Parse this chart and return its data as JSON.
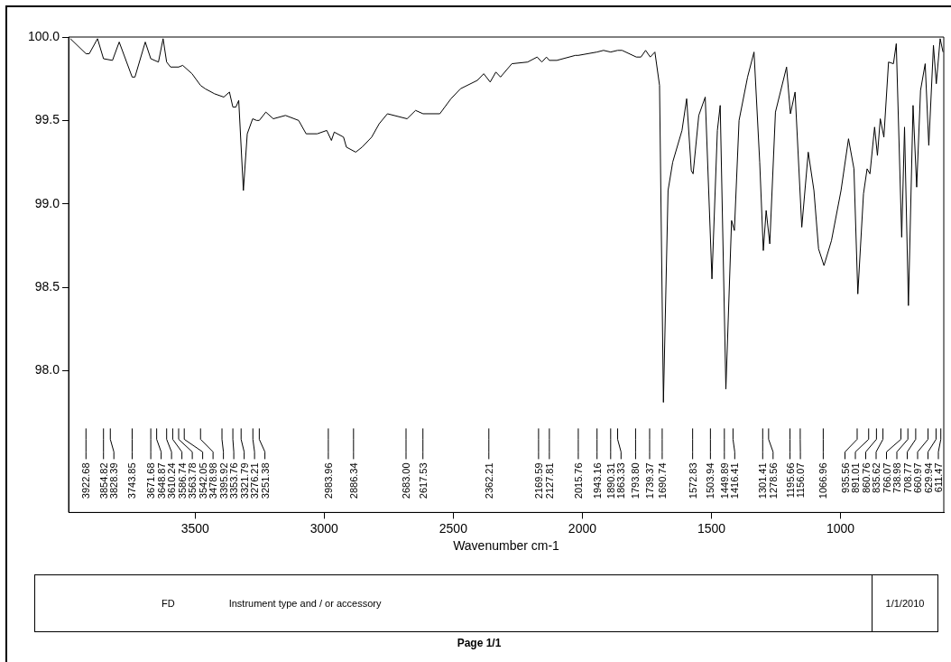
{
  "chart_data": {
    "type": "line",
    "xlabel": "Wavenumber cm-1",
    "xlim": [
      3990,
      600
    ],
    "xticks": [
      3500,
      3000,
      2500,
      2000,
      1500,
      1000
    ],
    "ylim": [
      97.15,
      100.0
    ],
    "yticks": [
      {
        "value": 98,
        "label": "98.0"
      },
      {
        "value": 98.5,
        "label": "98.5"
      },
      {
        "value": 99,
        "label": "99.0"
      },
      {
        "value": 99.5,
        "label": "99.5"
      },
      {
        "value": 100,
        "label": "100.0"
      }
    ],
    "marker": "none",
    "line_style": "solid",
    "legend": false,
    "series": [
      {
        "color": "#000000",
        "x": [
          3983,
          3922.68,
          3910,
          3878,
          3854.82,
          3820,
          3794,
          3743.85,
          3733,
          3693,
          3671.68,
          3642,
          3624,
          3610.24,
          3595,
          3563.78,
          3548,
          3512,
          3478.98,
          3461,
          3425,
          3389,
          3367,
          3353.76,
          3342,
          3331,
          3313,
          3298,
          3277,
          3262,
          3251.38,
          3226,
          3197,
          3150,
          3099,
          3070,
          3027,
          2990,
          2972,
          2961,
          2925,
          2914,
          2878,
          2853,
          2816,
          2787,
          2755,
          2679,
          2646,
          2617,
          2552,
          2509,
          2472,
          2407,
          2382,
          2357,
          2335,
          2317,
          2273,
          2212,
          2175,
          2157,
          2139,
          2127.81,
          2099,
          2027,
          2015.76,
          1943.16,
          1918,
          1890.31,
          1863.33,
          1846,
          1791,
          1773,
          1755,
          1737,
          1719,
          1701,
          1686,
          1668,
          1650,
          1614,
          1596,
          1578,
          1571,
          1549,
          1524,
          1498,
          1477,
          1466,
          1444,
          1422,
          1411,
          1393,
          1360,
          1335,
          1313,
          1299,
          1288,
          1274,
          1252,
          1209,
          1194,
          1176,
          1150,
          1125,
          1103,
          1085,
          1064,
          1035,
          998,
          969,
          948,
          933,
          911,
          897,
          886,
          868,
          857,
          846,
          832,
          814,
          795,
          784,
          763,
          752,
          737,
          719,
          705,
          690,
          672,
          658,
          640,
          629,
          614,
          603
        ],
        "values": [
          99.99,
          99.9,
          99.9,
          99.99,
          99.87,
          99.86,
          99.97,
          99.76,
          99.76,
          99.97,
          99.87,
          99.85,
          99.99,
          99.85,
          99.82,
          99.82,
          99.83,
          99.78,
          99.71,
          99.69,
          99.66,
          99.64,
          99.67,
          99.58,
          99.58,
          99.62,
          99.08,
          99.42,
          99.51,
          99.5,
          99.5,
          99.55,
          99.51,
          99.53,
          99.5,
          99.42,
          99.42,
          99.44,
          99.38,
          99.43,
          99.4,
          99.34,
          99.31,
          99.34,
          99.4,
          99.48,
          99.54,
          99.51,
          99.56,
          99.54,
          99.54,
          99.63,
          99.69,
          99.74,
          99.78,
          99.73,
          99.79,
          99.76,
          99.84,
          99.85,
          99.88,
          99.85,
          99.88,
          99.86,
          99.86,
          99.89,
          99.89,
          99.91,
          99.92,
          99.91,
          99.92,
          99.92,
          99.88,
          99.88,
          99.92,
          99.88,
          99.91,
          99.71,
          97.81,
          99.08,
          99.25,
          99.44,
          99.63,
          99.2,
          99.18,
          99.53,
          99.64,
          98.55,
          99.44,
          99.59,
          97.89,
          98.9,
          98.84,
          99.5,
          99.76,
          99.91,
          99.25,
          98.72,
          98.96,
          98.76,
          99.55,
          99.82,
          99.54,
          99.67,
          98.86,
          99.31,
          99.08,
          98.73,
          98.63,
          98.78,
          99.08,
          99.39,
          99.21,
          98.46,
          99.06,
          99.21,
          99.18,
          99.46,
          99.29,
          99.51,
          99.4,
          99.85,
          99.84,
          99.96,
          98.8,
          99.46,
          98.39,
          99.59,
          99.1,
          99.68,
          99.84,
          99.35,
          99.95,
          99.72,
          99.99,
          99.91
        ]
      }
    ],
    "annotations": [
      {
        "text": "3922.68",
        "x": 3922.68
      },
      {
        "text": "3854.82",
        "x": 3854.82
      },
      {
        "text": "3828.39",
        "x": 3828.39
      },
      {
        "text": "3743.85",
        "x": 3743.85
      },
      {
        "text": "3671.68",
        "x": 3671.68
      },
      {
        "text": "3648.87",
        "x": 3648.87
      },
      {
        "text": "3610.24",
        "x": 3610.24
      },
      {
        "text": "3586.74",
        "x": 3586.74
      },
      {
        "text": "3563.78",
        "x": 3563.78
      },
      {
        "text": "3542.05",
        "x": 3542.05
      },
      {
        "text": "3478.98",
        "x": 3478.98
      },
      {
        "text": "3395.92",
        "x": 3395.92
      },
      {
        "text": "3353.76",
        "x": 3353.76
      },
      {
        "text": "3321.79",
        "x": 3321.79
      },
      {
        "text": "3276.21",
        "x": 3276.21
      },
      {
        "text": "3251.38",
        "x": 3251.38
      },
      {
        "text": "2983.96",
        "x": 2983.96
      },
      {
        "text": "2886.34",
        "x": 2886.34
      },
      {
        "text": "2683.00",
        "x": 2683.0
      },
      {
        "text": "2617.53",
        "x": 2617.53
      },
      {
        "text": "2362.21",
        "x": 2362.21
      },
      {
        "text": "2169.59",
        "x": 2169.59
      },
      {
        "text": "2127.81",
        "x": 2127.81
      },
      {
        "text": "2015.76",
        "x": 2015.76
      },
      {
        "text": "1943.16",
        "x": 1943.16
      },
      {
        "text": "1890.31",
        "x": 1890.31
      },
      {
        "text": "1863.33",
        "x": 1863.33
      },
      {
        "text": "1793.80",
        "x": 1793.8
      },
      {
        "text": "1739.37",
        "x": 1739.37
      },
      {
        "text": "1690.74",
        "x": 1690.74
      },
      {
        "text": "1572.83",
        "x": 1572.83
      },
      {
        "text": "1503.94",
        "x": 1503.94
      },
      {
        "text": "1449.89",
        "x": 1449.89
      },
      {
        "text": "1416.41",
        "x": 1416.41
      },
      {
        "text": "1301.41",
        "x": 1301.41
      },
      {
        "text": "1278.56",
        "x": 1278.56
      },
      {
        "text": "1195.66",
        "x": 1195.66
      },
      {
        "text": "1156.07",
        "x": 1156.07
      },
      {
        "text": "1066.96",
        "x": 1066.96
      },
      {
        "text": "935.56",
        "x": 935.56
      },
      {
        "text": "891.01",
        "x": 891.01
      },
      {
        "text": "860.76",
        "x": 860.76
      },
      {
        "text": "835.62",
        "x": 835.62
      },
      {
        "text": "766.07",
        "x": 766.07
      },
      {
        "text": "738.98",
        "x": 738.98
      },
      {
        "text": "708.77",
        "x": 708.77
      },
      {
        "text": "660.97",
        "x": 660.97
      },
      {
        "text": "629.94",
        "x": 629.94
      },
      {
        "text": "611.47",
        "x": 611.47
      },
      "FD",
      "Instrument type and / or accessory",
      "1/1/2010",
      "Page 1/1"
    ]
  }
}
